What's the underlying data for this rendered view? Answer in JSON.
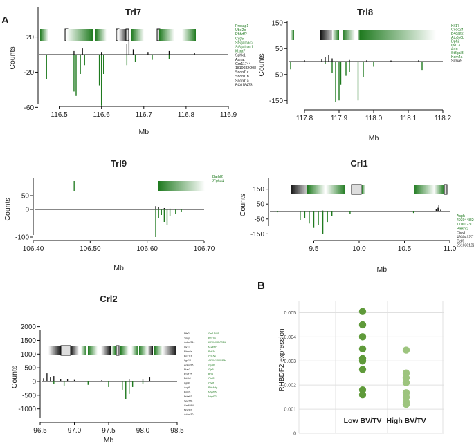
{
  "panel_labels": {
    "a": "A",
    "b": "B"
  },
  "colors": {
    "green": "#1f7a1f",
    "black": "#111111",
    "dot_low": "#5f9a3a",
    "dot_high": "#9dc47e"
  },
  "chart_data": [
    {
      "id": "trl7",
      "type": "area",
      "title": "Trl7",
      "xlabel": "Mb",
      "ylabel": "Counts",
      "xlim": [
        116.45,
        116.9
      ],
      "ylim": [
        -65,
        45
      ],
      "xticks": [
        116.5,
        116.6,
        116.7,
        116.8,
        116.9
      ],
      "xtick_labels": [
        "116.5",
        "116.6",
        "116.7",
        "116.8",
        "116.9"
      ],
      "yticks": [
        20,
        -20,
        -60
      ],
      "ytick_labels": [
        "20",
        "-20",
        "-60"
      ],
      "genes": [
        {
          "name": "Prosap1",
          "color": "#1f7a1f"
        },
        {
          "name": "Ube2o",
          "color": "#1f7a1f"
        },
        {
          "name": "Rhbdf2",
          "color": "#1f7a1f"
        },
        {
          "name": "Cyg5",
          "color": "#1f7a1f"
        },
        {
          "name": "St6galnac2",
          "color": "#1f7a1f"
        },
        {
          "name": "St6galnac1",
          "color": "#1f7a1f"
        },
        {
          "name": "Mxra7",
          "color": "#1f7a1f"
        },
        {
          "name": "Sphk1",
          "color": "#111111"
        },
        {
          "name": "Aanat",
          "color": "#111111"
        },
        {
          "name": "Gm11744",
          "color": "#111111"
        },
        {
          "name": "1810032O08",
          "color": "#111111"
        },
        {
          "name": "Snord1c",
          "color": "#111111"
        },
        {
          "name": "Snord1b",
          "color": "#111111"
        },
        {
          "name": "Snord1a",
          "color": "#111111"
        },
        {
          "name": "BC018473",
          "color": "#111111"
        }
      ],
      "positive_spikes": [
        [
          116.535,
          4
        ],
        [
          116.555,
          7
        ],
        [
          116.6,
          3
        ],
        [
          116.66,
          12
        ],
        [
          116.665,
          18
        ],
        [
          116.675,
          6
        ],
        [
          116.71,
          3
        ],
        [
          116.76,
          4
        ],
        [
          116.82,
          2
        ]
      ],
      "negative_spikes": [
        [
          116.47,
          -28
        ],
        [
          116.535,
          -42
        ],
        [
          116.54,
          -47
        ],
        [
          116.55,
          -22
        ],
        [
          116.56,
          -12
        ],
        [
          116.595,
          -35
        ],
        [
          116.6,
          -58
        ],
        [
          116.605,
          -22
        ],
        [
          116.66,
          -12
        ],
        [
          116.68,
          -8
        ],
        [
          116.72,
          -6
        ],
        [
          116.76,
          -5
        ]
      ]
    },
    {
      "id": "trl8",
      "type": "area",
      "title": "Trl8",
      "xlabel": "Mb",
      "ylabel": "Counts",
      "xlim": [
        117.75,
        118.2
      ],
      "ylim": [
        -160,
        160
      ],
      "xticks": [
        117.8,
        117.9,
        118.0,
        118.1,
        118.2
      ],
      "xtick_labels": [
        "117.8",
        "117.9",
        "118.0",
        "118.1",
        "118.2"
      ],
      "yticks": [
        150,
        50,
        -50,
        -150
      ],
      "ytick_labels": [
        "150",
        "50",
        "-50",
        "-150"
      ],
      "genes": [
        {
          "name": "Klf17",
          "color": "#1f7a1f"
        },
        {
          "name": "Ccdc24",
          "color": "#1f7a1f"
        },
        {
          "name": "B4galt2",
          "color": "#1f7a1f"
        },
        {
          "name": "Atp6v0b",
          "color": "#1f7a1f"
        },
        {
          "name": "Dph2",
          "color": "#1f7a1f"
        },
        {
          "name": "Ipo13",
          "color": "#1f7a1f"
        },
        {
          "name": "Artn",
          "color": "#1f7a1f"
        },
        {
          "name": "St3gal3",
          "color": "#1f7a1f"
        },
        {
          "name": "Kdm4a",
          "color": "#1f7a1f"
        },
        {
          "name": "Slc6a9",
          "color": "#111111"
        }
      ],
      "positive_spikes": [
        [
          117.8,
          5
        ],
        [
          117.85,
          8
        ],
        [
          117.86,
          18
        ],
        [
          117.87,
          25
        ],
        [
          117.88,
          12
        ],
        [
          117.93,
          6
        ],
        [
          117.98,
          5
        ],
        [
          118.05,
          4
        ],
        [
          118.13,
          5
        ]
      ],
      "negative_spikes": [
        [
          117.76,
          -30
        ],
        [
          117.86,
          -10
        ],
        [
          117.88,
          -45
        ],
        [
          117.89,
          -155
        ],
        [
          117.9,
          -150
        ],
        [
          117.905,
          -90
        ],
        [
          117.92,
          -55
        ],
        [
          117.93,
          -40
        ],
        [
          117.955,
          -150
        ],
        [
          117.97,
          -60
        ],
        [
          118.0,
          -20
        ],
        [
          118.14,
          -35
        ]
      ]
    },
    {
      "id": "trl9",
      "type": "area",
      "title": "Trl9",
      "xlabel": "Mb",
      "ylabel": "Counts",
      "xlim": [
        106.4,
        106.7
      ],
      "ylim": [
        -110,
        95
      ],
      "xticks": [
        106.4,
        106.5,
        106.6,
        106.7
      ],
      "xtick_labels": [
        "106.40",
        "106.50",
        "106.60",
        "106.70"
      ],
      "yticks": [
        50,
        0,
        -100
      ],
      "ytick_labels": [
        "50",
        "0",
        "-100"
      ],
      "genes": [
        {
          "name": "Barhl2",
          "color": "#1f7a1f"
        },
        {
          "name": "Zfp644",
          "color": "#1f7a1f"
        }
      ],
      "positive_spikes": [
        [
          106.615,
          12
        ],
        [
          106.62,
          8
        ],
        [
          106.63,
          5
        ],
        [
          106.64,
          3
        ]
      ],
      "negative_spikes": [
        [
          106.615,
          -100
        ],
        [
          106.62,
          -30
        ],
        [
          106.625,
          -20
        ],
        [
          106.63,
          -45
        ],
        [
          106.635,
          -55
        ],
        [
          106.64,
          -25
        ],
        [
          106.65,
          -15
        ],
        [
          106.66,
          -10
        ]
      ]
    },
    {
      "id": "crl1",
      "type": "area",
      "title": "Crl1",
      "xlabel": "Mb",
      "ylabel": "Counts",
      "xlim": [
        9.0,
        11.0
      ],
      "ylim": [
        -160,
        160
      ],
      "xticks": [
        9.5,
        10.0,
        10.5,
        11.0
      ],
      "xtick_labels": [
        "9.5",
        "10.0",
        "10.5",
        "11.0"
      ],
      "yticks": [
        150,
        50,
        -50,
        -150
      ],
      "ytick_labels": [
        "150",
        "50",
        "-50",
        "-150"
      ],
      "genes": [
        {
          "name": "Asph",
          "color": "#1f7a1f"
        },
        {
          "name": "4930448I20Rik",
          "color": "#1f7a1f"
        },
        {
          "name": "1700123O12Rik",
          "color": "#1f7a1f"
        },
        {
          "name": "Plekhf2",
          "color": "#1f7a1f"
        },
        {
          "name": "Clvs1",
          "color": "#111111"
        },
        {
          "name": "4930412C18Rik",
          "color": "#111111"
        },
        {
          "name": "Gdf6",
          "color": "#111111"
        },
        {
          "name": "2610301B20Rik",
          "color": "#111111"
        }
      ],
      "positive_spikes": [
        [
          9.4,
          4
        ],
        [
          9.6,
          6
        ],
        [
          9.8,
          4
        ],
        [
          10.3,
          3
        ],
        [
          10.85,
          15
        ],
        [
          10.87,
          25
        ],
        [
          10.88,
          45
        ],
        [
          10.9,
          12
        ]
      ],
      "negative_spikes": [
        [
          9.1,
          -5
        ],
        [
          9.35,
          -60
        ],
        [
          9.4,
          -45
        ],
        [
          9.45,
          -80
        ],
        [
          9.5,
          -110
        ],
        [
          9.55,
          -90
        ],
        [
          9.6,
          -150
        ],
        [
          9.65,
          -70
        ],
        [
          9.7,
          -30
        ],
        [
          9.9,
          -15
        ],
        [
          10.6,
          -10
        ]
      ]
    },
    {
      "id": "crl2",
      "type": "area",
      "title": "Crl2",
      "xlabel": "Mb",
      "ylabel": "Counts",
      "xlim": [
        96.5,
        98.5
      ],
      "ylim": [
        -1100,
        2100
      ],
      "xticks": [
        96.5,
        97.0,
        97.5,
        98.0,
        98.5
      ],
      "xtick_labels": [
        "96.5",
        "97.0",
        "97.5",
        "98.0",
        "98.5"
      ],
      "yticks": [
        2000,
        1500,
        1000,
        500,
        0,
        -500,
        -1000
      ],
      "ytick_labels": [
        "2000",
        "1500",
        "1000",
        "500",
        "0",
        "-500",
        "-1000"
      ],
      "genes_black": [
        "Nfe2",
        "Tnnp",
        "Ankrd34a",
        "Lix1l",
        "Rbm8a",
        "Pex11b",
        "Itga10",
        "Ankrd35",
        "Pias3",
        "Rnf115",
        "Pdzk1",
        "Gja8",
        "Acp6",
        "Fmo5",
        "Prkab2",
        "Sec22b",
        "Gm6594",
        "Notch2",
        "Adam30"
      ],
      "genes_green": [
        "Gm15441",
        "Pdz1ip",
        "6330408D23Rik",
        "Nudt17",
        "Polr3c",
        "Cd160",
        "4930412L01Rik",
        "Gpr89",
        "Gja5",
        "Bcl9",
        "Chd1l",
        "Chd1",
        "Pde4dip",
        "Nbpf26",
        "Nbpf22"
      ],
      "positive_spikes": [
        [
          96.55,
          120
        ],
        [
          96.6,
          300
        ],
        [
          96.65,
          150
        ],
        [
          96.7,
          200
        ],
        [
          96.8,
          100
        ],
        [
          96.9,
          80
        ],
        [
          97.0,
          60
        ],
        [
          97.4,
          50
        ],
        [
          97.8,
          80
        ],
        [
          98.0,
          100
        ],
        [
          98.1,
          150
        ]
      ],
      "negative_spikes": [
        [
          96.7,
          -100
        ],
        [
          96.85,
          -150
        ],
        [
          97.2,
          -120
        ],
        [
          97.5,
          -200
        ],
        [
          97.7,
          -300
        ],
        [
          97.75,
          -650
        ],
        [
          97.8,
          -450
        ],
        [
          97.85,
          -200
        ],
        [
          98.0,
          -100
        ]
      ]
    },
    {
      "id": "rhbdf2",
      "type": "scatter",
      "ylabel": "RHBDF2 expression",
      "categories": [
        "Low BV/TV",
        "High BV/TV"
      ],
      "ylim": [
        0,
        0.0055
      ],
      "yticks": [
        0,
        0.001,
        0.002,
        0.003,
        0.004,
        0.005
      ],
      "ytick_labels": [
        "0",
        "0.001",
        "0.002",
        "0.003",
        "0.004",
        "0.005"
      ],
      "series": [
        {
          "name": "Low BV/TV",
          "values": [
            0.00505,
            0.0045,
            0.004,
            0.0035,
            0.0031,
            0.003,
            0.00265,
            0.0018,
            0.0016
          ]
        },
        {
          "name": "High BV/TV",
          "values": [
            0.00345,
            0.0025,
            0.0023,
            0.0021,
            0.00168,
            0.0015,
            0.0013,
            0.0012
          ]
        }
      ]
    }
  ]
}
